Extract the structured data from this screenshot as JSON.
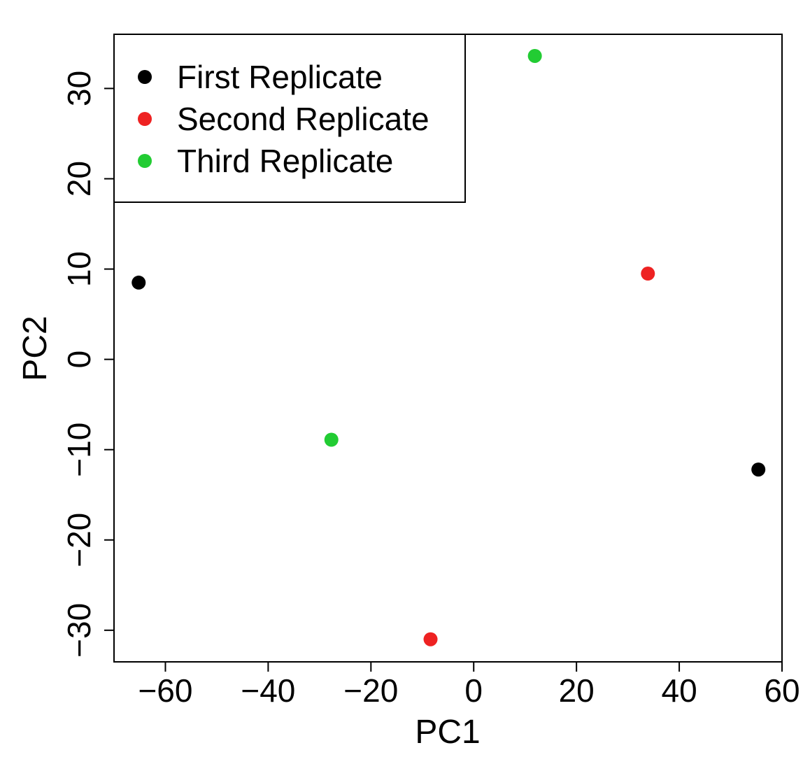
{
  "chart_data": {
    "type": "scatter",
    "title": "",
    "xlabel": "PC1",
    "ylabel": "PC2",
    "xlim": [
      -70,
      60
    ],
    "ylim": [
      -33.5,
      36
    ],
    "xticks": [
      -60,
      -40,
      -20,
      0,
      20,
      40,
      60
    ],
    "yticks": [
      -30,
      -20,
      -10,
      0,
      10,
      20,
      30
    ],
    "xtick_labels": [
      "−60",
      "−40",
      "−20",
      "0",
      "20",
      "40",
      "60"
    ],
    "ytick_labels": [
      "−30",
      "−20",
      "−10",
      "0",
      "10",
      "20",
      "30"
    ],
    "grid": false,
    "legend_position": "top-left",
    "series": [
      {
        "name": "First Replicate",
        "color": "#000000",
        "points": [
          {
            "x": -65.2,
            "y": 8.5
          },
          {
            "x": 55.4,
            "y": -12.2
          }
        ]
      },
      {
        "name": "Second Replicate",
        "color": "#ee2222",
        "points": [
          {
            "x": 33.9,
            "y": 9.5
          },
          {
            "x": -8.4,
            "y": -31.0
          }
        ]
      },
      {
        "name": "Third Replicate",
        "color": "#22cc33",
        "points": [
          {
            "x": 11.9,
            "y": 33.6
          },
          {
            "x": -27.7,
            "y": -8.9
          }
        ]
      }
    ]
  }
}
